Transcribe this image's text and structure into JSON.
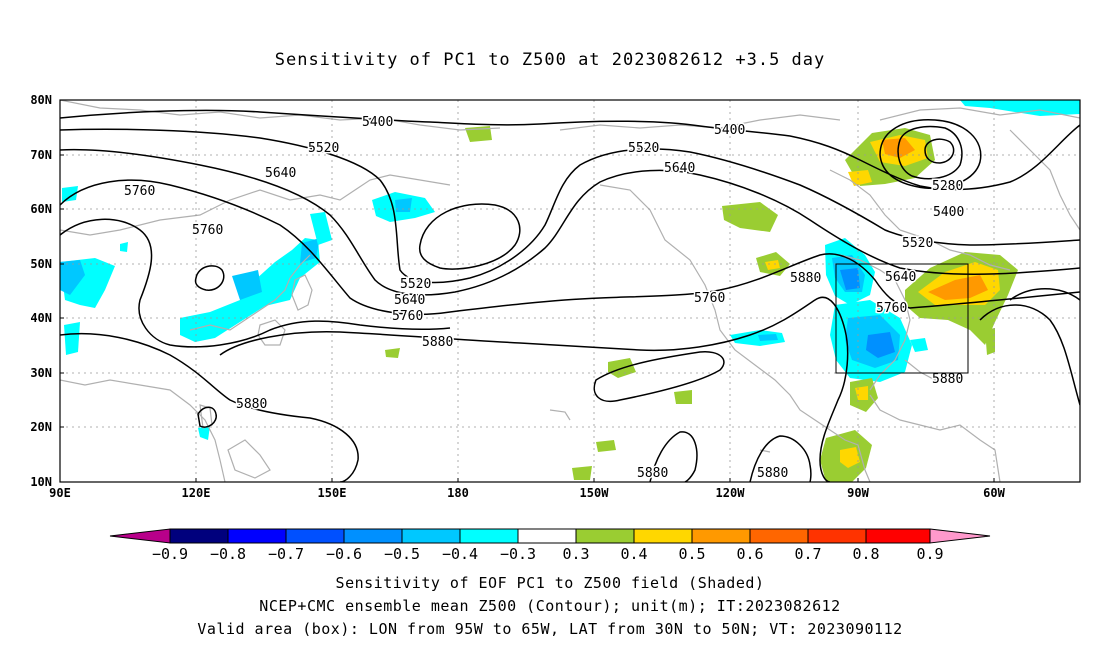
{
  "title": "Sensitivity of PC1 to Z500 at 2023082612 +3.5 day",
  "lat_ticks": [
    "80N",
    "70N",
    "60N",
    "50N",
    "40N",
    "30N",
    "20N",
    "10N"
  ],
  "lon_ticks": [
    "90E",
    "120E",
    "150E",
    "180",
    "150W",
    "120W",
    "90W",
    "60W"
  ],
  "contour_labels": [
    {
      "text": "5400",
      "id": "c5400a"
    },
    {
      "text": "5400",
      "id": "c5400b"
    },
    {
      "text": "5400",
      "id": "c5400c"
    },
    {
      "text": "5520",
      "id": "c5520a"
    },
    {
      "text": "5520",
      "id": "c5520b"
    },
    {
      "text": "5520",
      "id": "c5520c"
    },
    {
      "text": "5520",
      "id": "c5520d"
    },
    {
      "text": "5640",
      "id": "c5640a"
    },
    {
      "text": "5640",
      "id": "c5640b"
    },
    {
      "text": "5640",
      "id": "c5640c"
    },
    {
      "text": "5640",
      "id": "c5640d"
    },
    {
      "text": "5760",
      "id": "c5760a"
    },
    {
      "text": "5760",
      "id": "c5760b"
    },
    {
      "text": "5760",
      "id": "c5760c"
    },
    {
      "text": "5760",
      "id": "c5760d"
    },
    {
      "text": "5760",
      "id": "c5760e"
    },
    {
      "text": "5880",
      "id": "c5880a"
    },
    {
      "text": "5880",
      "id": "c5880b"
    },
    {
      "text": "5880",
      "id": "c5880c"
    },
    {
      "text": "5880",
      "id": "c5880d"
    },
    {
      "text": "5880",
      "id": "c5880e"
    },
    {
      "text": "5880",
      "id": "c5880f"
    },
    {
      "text": "5280",
      "id": "c5280a"
    }
  ],
  "colorbar": {
    "labels": [
      "−0.9",
      "−0.8",
      "−0.7",
      "−0.6",
      "−0.5",
      "−0.4",
      "−0.3",
      "0.3",
      "0.4",
      "0.5",
      "0.6",
      "0.7",
      "0.8",
      "0.9"
    ],
    "colors": [
      "#b8008a",
      "#00007d",
      "#0000ff",
      "#0050ff",
      "#0090ff",
      "#00c8ff",
      "#00ffff",
      "#ffffff",
      "#9acd32",
      "#ffd700",
      "#ff9900",
      "#ff6600",
      "#ff3300",
      "#ff0000",
      "#ff99cc"
    ]
  },
  "valid_box": {
    "lon_west": "95W",
    "lon_east": "65W",
    "lat_south": "30N",
    "lat_north": "50N"
  },
  "captions": [
    "Sensitivity of EOF PC1 to Z500 field (Shaded)",
    "NCEP+CMC ensemble mean Z500 (Contour); unit(m); IT:2023082612",
    "Valid area (box): LON from 95W to 65W, LAT from 30N to 50N; VT: 2023090112"
  ]
}
